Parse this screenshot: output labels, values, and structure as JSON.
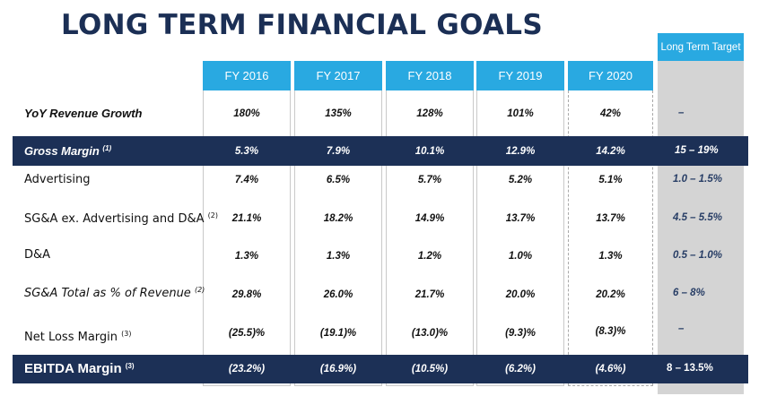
{
  "title": "LONG TERM FINANCIAL GOALS",
  "target_header": "Long Term Target",
  "years": [
    "FY 2016",
    "FY 2017",
    "FY 2018",
    "FY 2019",
    "FY 2020"
  ],
  "rows": [
    {
      "label": "YoY Revenue Growth",
      "sup": "",
      "values": [
        "180%",
        "135%",
        "128%",
        "101%",
        "42%"
      ],
      "target": "–"
    },
    {
      "label": "Gross Margin",
      "sup": "(1)",
      "values": [
        "5.3%",
        "7.9%",
        "10.1%",
        "12.9%",
        "14.2%"
      ],
      "target": "15 – 19%"
    },
    {
      "label": "Advertising",
      "sup": "",
      "values": [
        "7.4%",
        "6.5%",
        "5.7%",
        "5.2%",
        "5.1%"
      ],
      "target": "1.0 – 1.5%"
    },
    {
      "label": "SG&A ex. Advertising and D&A",
      "sup": "(2)",
      "values": [
        "21.1%",
        "18.2%",
        "14.9%",
        "13.7%",
        "13.7%"
      ],
      "target": "4.5 – 5.5%"
    },
    {
      "label": "D&A",
      "sup": "",
      "values": [
        "1.3%",
        "1.3%",
        "1.2%",
        "1.0%",
        "1.3%"
      ],
      "target": "0.5 – 1.0%"
    },
    {
      "label": "SG&A Total as % of Revenue",
      "sup": "(2)",
      "values": [
        "29.8%",
        "26.0%",
        "21.7%",
        "20.0%",
        "20.2%"
      ],
      "target": "6 – 8%"
    },
    {
      "label": "Net Loss Margin",
      "sup": "(3)",
      "values": [
        "(25.5)%",
        "(19.1)%",
        "(13.0)%",
        "(9.3)%",
        "(8.3)%"
      ],
      "target": "–"
    },
    {
      "label": "EBITDA Margin",
      "sup": "(3)",
      "values": [
        "(23.2%)",
        "(16.9%)",
        "(10.5%)",
        "(6.2%)",
        "(4.6%)"
      ],
      "target": "8 – 13.5%"
    }
  ],
  "colors": {
    "navy": "#1c3056",
    "title_navy": "#1b2f55",
    "header_blue": "#29a9e1",
    "target_gray": "#d4d4d4"
  }
}
